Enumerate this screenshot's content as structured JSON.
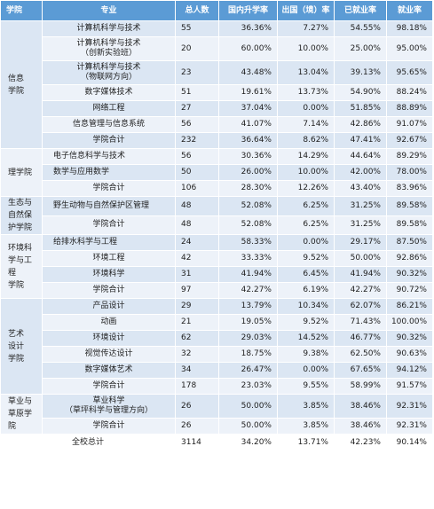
{
  "headers": {
    "college": "学院",
    "major": "专业",
    "total": "总人数",
    "domestic": "国内升学率",
    "abroad": "出国（境）率",
    "employed": "已就业率",
    "employment": "就业率"
  },
  "colleges": [
    {
      "name": "信息\n学院",
      "rows": [
        {
          "major": "计算机科学与技术",
          "total": "55",
          "domestic": "36.36%",
          "abroad": "7.27%",
          "employed": "54.55%",
          "employment": "98.18%"
        },
        {
          "major": "计算机科学与技术\n（创新实验班）",
          "total": "20",
          "domestic": "60.00%",
          "abroad": "10.00%",
          "employed": "25.00%",
          "employment": "95.00%"
        },
        {
          "major": "计算机科学与技术\n（物联网方向）",
          "total": "23",
          "domestic": "43.48%",
          "abroad": "13.04%",
          "employed": "39.13%",
          "employment": "95.65%"
        },
        {
          "major": "数字媒体技术",
          "total": "51",
          "domestic": "19.61%",
          "abroad": "13.73%",
          "employed": "54.90%",
          "employment": "88.24%"
        },
        {
          "major": "网络工程",
          "total": "27",
          "domestic": "37.04%",
          "abroad": "0.00%",
          "employed": "51.85%",
          "employment": "88.89%"
        },
        {
          "major": "信息管理与信息系统",
          "total": "56",
          "domestic": "41.07%",
          "abroad": "7.14%",
          "employed": "42.86%",
          "employment": "91.07%"
        },
        {
          "major": "学院合计",
          "total": "232",
          "domestic": "36.64%",
          "abroad": "8.62%",
          "employed": "47.41%",
          "employment": "92.67%"
        }
      ]
    },
    {
      "name": "理学院",
      "rows": [
        {
          "major": "电子信息科学与技术",
          "total": "56",
          "domestic": "30.36%",
          "abroad": "14.29%",
          "employed": "44.64%",
          "employment": "89.29%"
        },
        {
          "major": "数学与应用数学",
          "total": "50",
          "domestic": "26.00%",
          "abroad": "10.00%",
          "employed": "42.00%",
          "employment": "78.00%"
        },
        {
          "major": "学院合计",
          "total": "106",
          "domestic": "28.30%",
          "abroad": "12.26%",
          "employed": "43.40%",
          "employment": "83.96%"
        }
      ]
    },
    {
      "name": "生态与\n自然保\n护学院",
      "rows": [
        {
          "major": "野生动物与自然保护区管理",
          "total": "48",
          "domestic": "52.08%",
          "abroad": "6.25%",
          "employed": "31.25%",
          "employment": "89.58%"
        },
        {
          "major": "学院合计",
          "total": "48",
          "domestic": "52.08%",
          "abroad": "6.25%",
          "employed": "31.25%",
          "employment": "89.58%"
        }
      ]
    },
    {
      "name": "环境科\n学与工\n程\n学院",
      "rows": [
        {
          "major": "给排水科学与工程",
          "total": "24",
          "domestic": "58.33%",
          "abroad": "0.00%",
          "employed": "29.17%",
          "employment": "87.50%"
        },
        {
          "major": "环境工程",
          "total": "42",
          "domestic": "33.33%",
          "abroad": "9.52%",
          "employed": "50.00%",
          "employment": "92.86%"
        },
        {
          "major": "环境科学",
          "total": "31",
          "domestic": "41.94%",
          "abroad": "6.45%",
          "employed": "41.94%",
          "employment": "90.32%"
        },
        {
          "major": "学院合计",
          "total": "97",
          "domestic": "42.27%",
          "abroad": "6.19%",
          "employed": "42.27%",
          "employment": "90.72%"
        }
      ]
    },
    {
      "name": "艺术\n设计\n学院",
      "rows": [
        {
          "major": "产品设计",
          "total": "29",
          "domestic": "13.79%",
          "abroad": "10.34%",
          "employed": "62.07%",
          "employment": "86.21%"
        },
        {
          "major": "动画",
          "total": "21",
          "domestic": "19.05%",
          "abroad": "9.52%",
          "employed": "71.43%",
          "employment": "100.00%"
        },
        {
          "major": "环境设计",
          "total": "62",
          "domestic": "29.03%",
          "abroad": "14.52%",
          "employed": "46.77%",
          "employment": "90.32%"
        },
        {
          "major": "视觉传达设计",
          "total": "32",
          "domestic": "18.75%",
          "abroad": "9.38%",
          "employed": "62.50%",
          "employment": "90.63%"
        },
        {
          "major": "数字媒体艺术",
          "total": "34",
          "domestic": "26.47%",
          "abroad": "0.00%",
          "employed": "67.65%",
          "employment": "94.12%"
        },
        {
          "major": "学院合计",
          "total": "178",
          "domestic": "23.03%",
          "abroad": "9.55%",
          "employed": "58.99%",
          "employment": "91.57%"
        }
      ]
    },
    {
      "name": "草业与\n草原学\n院",
      "rows": [
        {
          "major": "草业科学\n（草坪科学与管理方向）",
          "total": "26",
          "domestic": "50.00%",
          "abroad": "3.85%",
          "employed": "38.46%",
          "employment": "92.31%"
        },
        {
          "major": "学院合计",
          "total": "26",
          "domestic": "50.00%",
          "abroad": "3.85%",
          "employed": "38.46%",
          "employment": "92.31%"
        }
      ]
    }
  ],
  "grand_total": {
    "label": "全校总计",
    "total": "3114",
    "domestic": "34.20%",
    "abroad": "13.71%",
    "employed": "42.23%",
    "employment": "90.14%"
  }
}
